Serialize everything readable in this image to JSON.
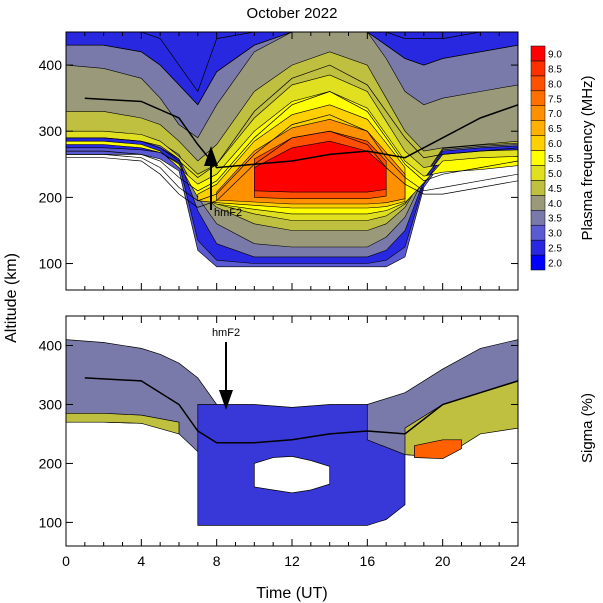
{
  "chart_data": [
    {
      "type": "heatmap",
      "title": "October  2022",
      "ylabel": "Altitude (km)",
      "xlim": [
        0,
        24
      ],
      "ylim": [
        60,
        450
      ],
      "yticks": [
        100,
        200,
        300,
        400
      ],
      "colorbar": {
        "label": "Plasma frequency (MHz)",
        "levels": [
          "2.0",
          "2.5",
          "3.0",
          "3.5",
          "4.0",
          "4.5",
          "5.0",
          "5.5",
          "6.0",
          "6.5",
          "7.0",
          "7.5",
          "8.0",
          "8.5",
          "9.0"
        ],
        "colors": [
          "#0000ff",
          "#2828e0",
          "#5a5ad2",
          "#7a7aaa",
          "#9a9a7a",
          "#c0c040",
          "#e0e020",
          "#ffff00",
          "#ffd000",
          "#ffb000",
          "#ff9000",
          "#ff7000",
          "#ff5000",
          "#ff3000",
          "#ff0000"
        ]
      },
      "annotation": "hmF2",
      "hmF2_line": {
        "x": [
          1,
          4,
          6,
          7,
          8,
          10,
          12,
          14,
          16,
          18,
          20,
          22,
          24
        ],
        "y": [
          350,
          345,
          320,
          280,
          245,
          250,
          255,
          265,
          270,
          260,
          290,
          320,
          340
        ]
      },
      "contours_x": [
        0,
        2,
        4,
        5,
        6,
        7,
        8,
        10,
        12,
        14,
        16,
        17,
        18,
        19,
        20,
        22,
        24
      ],
      "contours": [
        {
          "level": 2.0,
          "y": [
            450,
            450,
            450,
            440,
            400,
            360,
            440,
            450,
            450,
            450,
            450,
            450,
            440,
            440,
            440,
            450,
            450
          ]
        },
        {
          "level": 3.0,
          "y": [
            430,
            430,
            420,
            400,
            370,
            340,
            390,
            430,
            450,
            450,
            450,
            430,
            410,
            400,
            410,
            420,
            430
          ]
        },
        {
          "level": 4.0,
          "y": [
            290,
            290,
            285,
            275,
            255,
            230,
            250,
            330,
            380,
            400,
            370,
            330,
            290,
            260,
            265,
            270,
            275
          ]
        },
        {
          "level": 5.0,
          "y": [
            270,
            270,
            265,
            255,
            230,
            210,
            225,
            290,
            340,
            360,
            330,
            290,
            250,
            225,
            235,
            245,
            255
          ]
        },
        {
          "level": 6.0,
          "y": [
            265,
            265,
            260,
            245,
            215,
            195,
            205,
            265,
            310,
            325,
            300,
            260,
            230,
            210,
            215,
            225,
            235
          ]
        },
        {
          "level": 7.0,
          "y": [
            260,
            260,
            255,
            235,
            205,
            185,
            195,
            250,
            290,
            300,
            280,
            245,
            220,
            205,
            205,
            215,
            225
          ]
        }
      ]
    },
    {
      "type": "heatmap",
      "title": "",
      "xlabel": "Time (UT)",
      "xticks": [
        0,
        4,
        8,
        12,
        16,
        20,
        24
      ],
      "xlim": [
        0,
        24
      ],
      "ylim": [
        60,
        450
      ],
      "yticks": [
        100,
        200,
        300,
        400
      ],
      "colorbar": {
        "label": "Sigma (%)"
      },
      "annotation": "hmF2",
      "hmF2_line": {
        "x": [
          1,
          4,
          6,
          7,
          8,
          10,
          12,
          14,
          16,
          18,
          20,
          22,
          24
        ],
        "y": [
          345,
          340,
          300,
          255,
          235,
          235,
          240,
          250,
          255,
          250,
          300,
          320,
          340
        ]
      }
    }
  ],
  "colors": {
    "axes": "#000000",
    "background": "#ffffff",
    "line": "#000000"
  }
}
